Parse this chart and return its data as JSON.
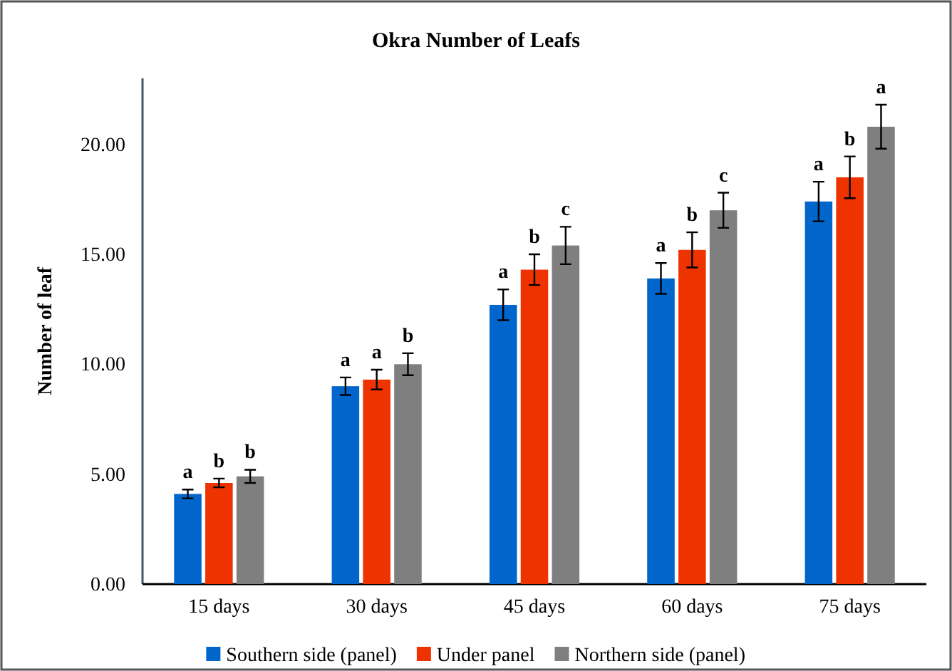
{
  "chart_data": {
    "type": "bar",
    "title": "Okra Number of Leafs",
    "ylabel": "Number of leaf",
    "categories": [
      "15 days",
      "30 days",
      "45 days",
      "60 days",
      "75 days"
    ],
    "series": [
      {
        "name": "Southern side (panel)",
        "color": "#0066cc",
        "values": [
          4.1,
          9.0,
          12.7,
          13.9,
          17.4
        ],
        "errors": [
          0.2,
          0.4,
          0.7,
          0.7,
          0.9
        ],
        "value_labels": [
          "a",
          "a",
          "a",
          "a",
          "a"
        ]
      },
      {
        "name": "Under panel",
        "color": "#ee3300",
        "values": [
          4.6,
          9.3,
          14.3,
          15.2,
          18.5
        ],
        "errors": [
          0.2,
          0.45,
          0.7,
          0.8,
          0.95
        ],
        "value_labels": [
          "b",
          "a",
          "b",
          "b",
          "b"
        ]
      },
      {
        "name": "Northern side (panel)",
        "color": "#7f7f7f",
        "values": [
          4.9,
          10.0,
          15.4,
          17.0,
          20.8
        ],
        "errors": [
          0.3,
          0.5,
          0.85,
          0.8,
          1.0
        ],
        "value_labels": [
          "b",
          "b",
          "c",
          "c",
          "a"
        ]
      }
    ],
    "ylim": [
      0,
      23
    ],
    "yticks": [
      {
        "value": 0,
        "label": "0.00"
      },
      {
        "value": 5,
        "label": "5.00"
      },
      {
        "value": 10,
        "label": "10.00"
      },
      {
        "value": 15,
        "label": "15.00"
      },
      {
        "value": 20,
        "label": "20.00"
      }
    ],
    "legend": "bottom",
    "grid": false
  }
}
